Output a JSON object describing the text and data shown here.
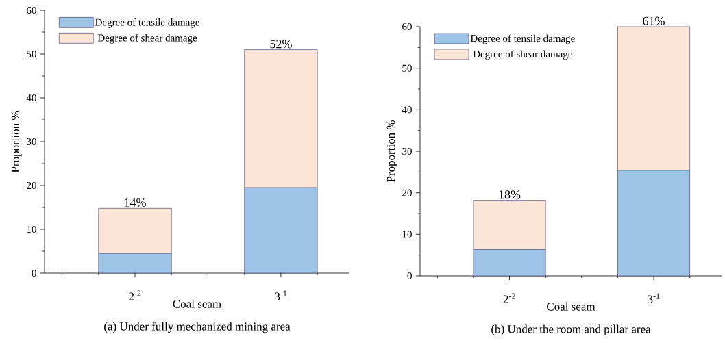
{
  "chart_data": [
    {
      "type": "bar",
      "stacked": true,
      "title": "(a) Under fully mechanized mining area",
      "xlabel": "Coal seam",
      "ylabel": "Proportion %",
      "categories": [
        "2$^{-2}$",
        "3$^{-1}$"
      ],
      "series": [
        {
          "name": "Degree of tensile damage",
          "color": "#9dc3e6",
          "values": [
            4.5,
            19.5
          ]
        },
        {
          "name": "Degree of shear damage",
          "color": "#fbe5d6",
          "values": [
            10.3,
            31.5
          ]
        }
      ],
      "ylim": [
        0,
        60
      ],
      "yticks": [
        0,
        10,
        20,
        30,
        40,
        50,
        60
      ],
      "legend": "top left",
      "totals": [
        "14%",
        "52%"
      ]
    },
    {
      "type": "bar",
      "stacked": true,
      "title": "(b) Under the room and pillar area",
      "xlabel": "Coal seam",
      "ylabel": "Proportion %",
      "categories": [
        "2$^{-2}$",
        "3$^{-1}$"
      ],
      "series": [
        {
          "name": "Degree of tensile damage",
          "color": "#9dc3e6",
          "values": [
            6.3,
            25.4
          ]
        },
        {
          "name": "Degree of shear damage",
          "color": "#fbe5d6",
          "values": [
            11.9,
            34.6
          ]
        }
      ],
      "ylim": [
        0,
        60
      ],
      "yticks": [
        0,
        10,
        20,
        30,
        40,
        50,
        60
      ],
      "legend": "top left",
      "totals": [
        "18%",
        "61%"
      ]
    }
  ]
}
